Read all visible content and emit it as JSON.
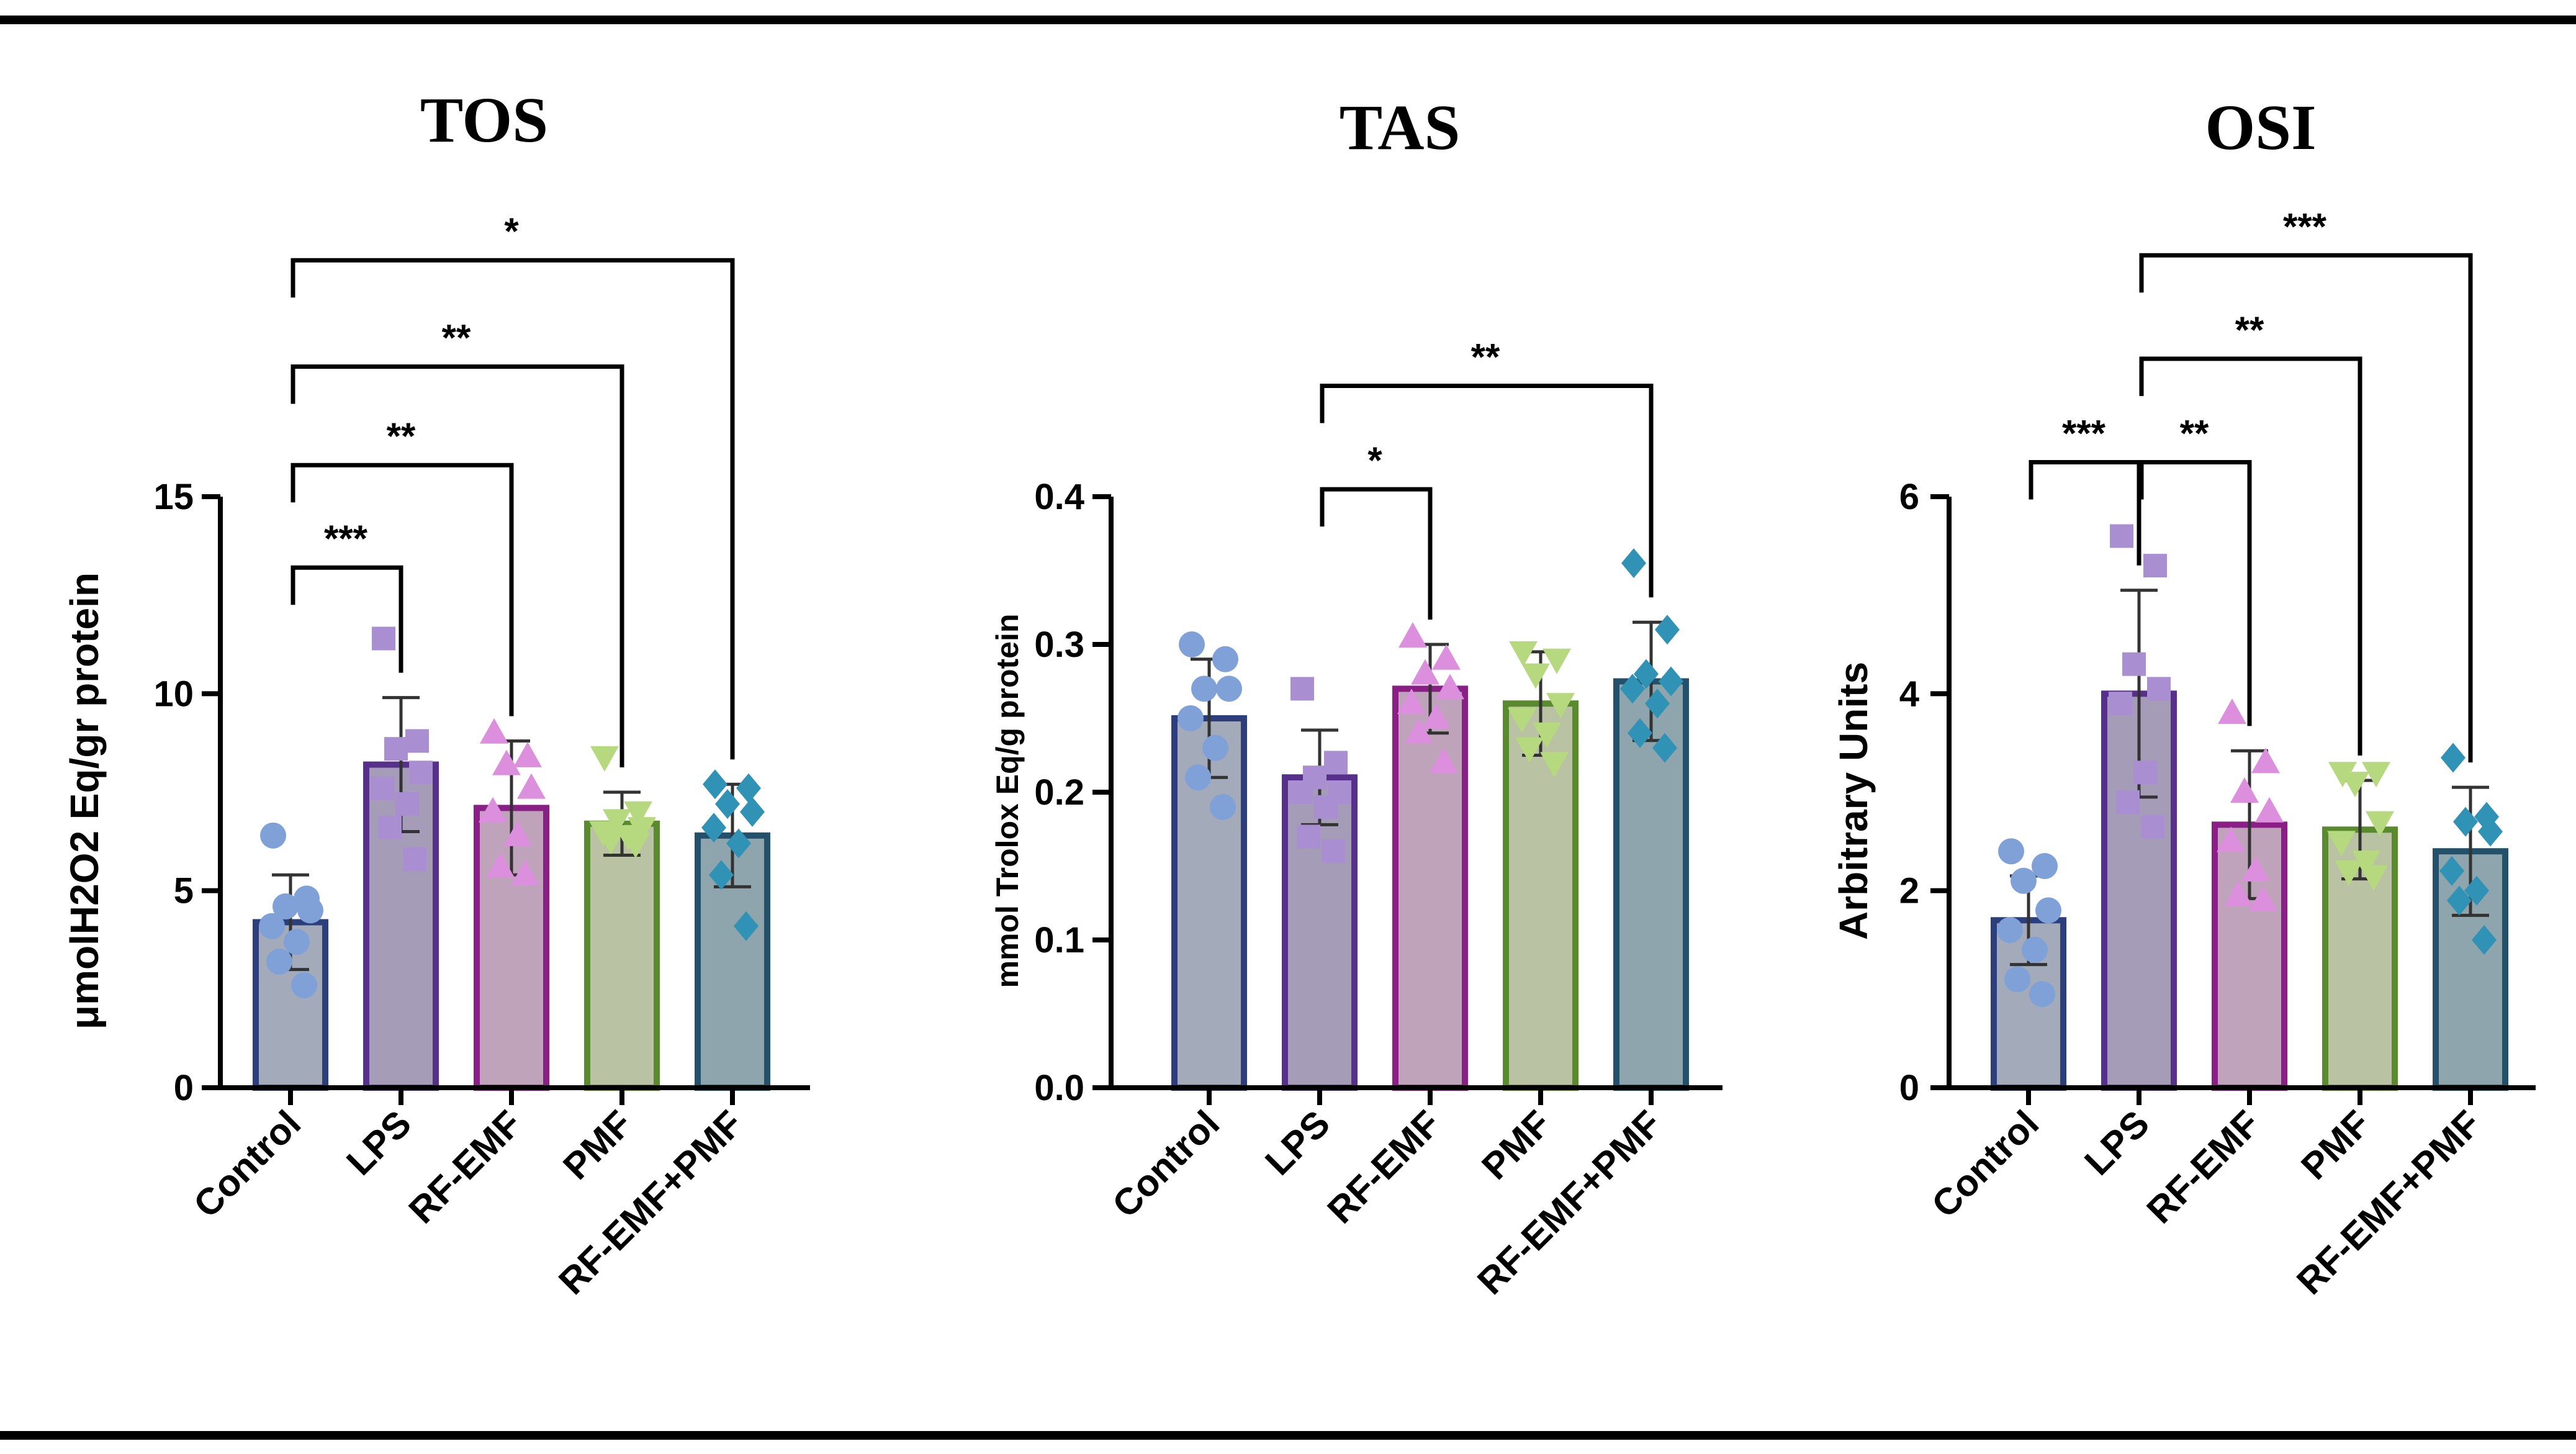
{
  "chart_data": [
    {
      "type": "bar",
      "title": "TOS",
      "ylabel": "μmolH2O2 Eq/gr protein",
      "xlabel": "",
      "categories": [
        "Control",
        "LPS",
        "RF-EMF",
        "PMF",
        "RF-EMF+PMF"
      ],
      "values": [
        4.2,
        8.2,
        7.1,
        6.7,
        6.4
      ],
      "errors": [
        1.2,
        1.7,
        1.7,
        0.8,
        1.3
      ],
      "points": [
        [
          6.4,
          4.8,
          4.6,
          4.5,
          4.1,
          3.7,
          3.2,
          2.6
        ],
        [
          11.4,
          8.8,
          8.6,
          8.0,
          7.6,
          7.2,
          6.6,
          5.8
        ],
        [
          9.0,
          8.4,
          8.2,
          7.6,
          7.0,
          6.4,
          5.6,
          5.4
        ],
        [
          8.4,
          7.0,
          6.8,
          6.6,
          6.5,
          6.4,
          6.3,
          6.2
        ],
        [
          7.7,
          7.6,
          7.2,
          7.0,
          6.6,
          6.2,
          5.4,
          4.1
        ]
      ],
      "ylim": [
        0,
        15
      ],
      "yticks": [
        0,
        5,
        10,
        15
      ],
      "significance": [
        {
          "from": "Control",
          "to": "LPS",
          "label": "***",
          "level": 13.2
        },
        {
          "from": "Control",
          "to": "RF-EMF",
          "label": "**",
          "level": 15.8
        },
        {
          "from": "Control",
          "to": "PMF",
          "label": "**",
          "level": 18.3
        },
        {
          "from": "Control",
          "to": "RF-EMF+PMF",
          "label": "*",
          "level": 21.0
        }
      ]
    },
    {
      "type": "bar",
      "title": "TAS",
      "ylabel": "mmol Trolox Eq/g protein",
      "xlabel": "",
      "categories": [
        "Control",
        "LPS",
        "RF-EMF",
        "PMF",
        "RF-EMF+PMF"
      ],
      "values": [
        0.25,
        0.21,
        0.27,
        0.26,
        0.275
      ],
      "errors": [
        0.04,
        0.032,
        0.03,
        0.035,
        0.04
      ],
      "points": [
        [
          0.3,
          0.29,
          0.27,
          0.27,
          0.25,
          0.23,
          0.21,
          0.19
        ],
        [
          0.27,
          0.22,
          0.21,
          0.2,
          0.2,
          0.19,
          0.17,
          0.16
        ],
        [
          0.305,
          0.29,
          0.28,
          0.27,
          0.26,
          0.25,
          0.24,
          0.22
        ],
        [
          0.295,
          0.29,
          0.28,
          0.26,
          0.25,
          0.24,
          0.23,
          0.22
        ],
        [
          0.355,
          0.31,
          0.28,
          0.275,
          0.27,
          0.26,
          0.24,
          0.23
        ]
      ],
      "ylim": [
        0,
        0.4
      ],
      "yticks": [
        "0.0",
        "0.1",
        "0.2",
        "0.3",
        "0.4"
      ],
      "significance": [
        {
          "from": "LPS",
          "to": "RF-EMF",
          "label": "*",
          "level": 0.405
        },
        {
          "from": "LPS",
          "to": "RF-EMF+PMF",
          "label": "**",
          "level": 0.475
        }
      ]
    },
    {
      "type": "bar",
      "title": "OSI",
      "ylabel": "Arbitrary Units",
      "xlabel": "",
      "categories": [
        "Control",
        "LPS",
        "RF-EMF",
        "PMF",
        "RF-EMF+PMF"
      ],
      "values": [
        1.7,
        4.0,
        2.67,
        2.62,
        2.4
      ],
      "errors": [
        0.45,
        1.05,
        0.75,
        0.5,
        0.65
      ],
      "points": [
        [
          2.4,
          2.25,
          2.1,
          1.8,
          1.6,
          1.4,
          1.1,
          0.95
        ],
        [
          5.6,
          5.3,
          4.3,
          4.05,
          3.9,
          3.2,
          2.9,
          2.65
        ],
        [
          3.8,
          3.3,
          3.0,
          2.8,
          2.5,
          2.2,
          1.95,
          1.9
        ],
        [
          3.2,
          3.2,
          3.1,
          2.7,
          2.5,
          2.3,
          2.2,
          2.15
        ],
        [
          3.35,
          2.75,
          2.7,
          2.6,
          2.2,
          2.0,
          1.9,
          1.5
        ]
      ],
      "ylim": [
        0,
        6
      ],
      "yticks": [
        0,
        2,
        4,
        6
      ],
      "significance": [
        {
          "from": "Control",
          "to": "LPS",
          "label": "***",
          "level": 6.35
        },
        {
          "from": "LPS",
          "to": "RF-EMF",
          "label": "**",
          "level": 6.35
        },
        {
          "from": "LPS",
          "to": "PMF",
          "label": "**",
          "level": 7.4
        },
        {
          "from": "LPS",
          "to": "RF-EMF+PMF",
          "label": "***",
          "level": 8.45
        }
      ]
    }
  ],
  "series_colors": [
    {
      "fill": "#a3abba",
      "edge": "#2c3f7c",
      "point": "#7fa1d8",
      "shape": "circle"
    },
    {
      "fill": "#a59cb8",
      "edge": "#56308a",
      "point": "#a98ed2",
      "shape": "square"
    },
    {
      "fill": "#bea3bb",
      "edge": "#8a1f86",
      "point": "#dc8fdc",
      "shape": "triangle-up"
    },
    {
      "fill": "#b9c2a3",
      "edge": "#5a8a2e",
      "point": "#b6d97f",
      "shape": "triangle-down"
    },
    {
      "fill": "#8ea5ae",
      "edge": "#23506a",
      "point": "#3092b5",
      "shape": "diamond"
    }
  ]
}
